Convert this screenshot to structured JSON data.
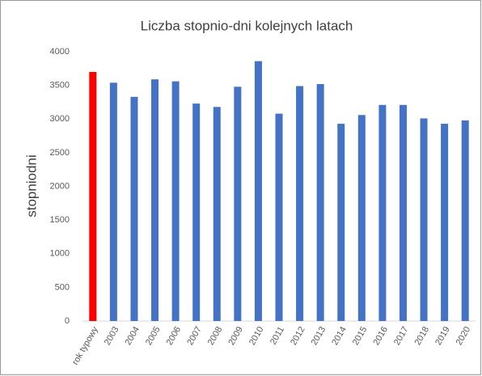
{
  "chart_data": {
    "type": "bar",
    "title": "Liczba stopnio-dni kolejnych latach",
    "y_label": "stopniodni",
    "categories": [
      "rok typowy",
      "2003",
      "2004",
      "2005",
      "2006",
      "2007",
      "2008",
      "2009",
      "2010",
      "2011",
      "2012",
      "2013",
      "2014",
      "2015",
      "2016",
      "2017",
      "2018",
      "2019",
      "2020"
    ],
    "values": [
      3700,
      3540,
      3330,
      3590,
      3560,
      3230,
      3180,
      3480,
      3860,
      3080,
      3490,
      3520,
      2930,
      3060,
      3210,
      3210,
      3010,
      2930,
      2980
    ],
    "colors": [
      "#ff0000",
      "#4472c4",
      "#4472c4",
      "#4472c4",
      "#4472c4",
      "#4472c4",
      "#4472c4",
      "#4472c4",
      "#4472c4",
      "#4472c4",
      "#4472c4",
      "#4472c4",
      "#4472c4",
      "#4472c4",
      "#4472c4",
      "#4472c4",
      "#4472c4",
      "#4472c4",
      "#4472c4"
    ],
    "ylim": [
      0,
      4000
    ],
    "yticks": [
      0,
      500,
      1000,
      1500,
      2000,
      2500,
      3000,
      3500,
      4000
    ],
    "grid": false
  }
}
